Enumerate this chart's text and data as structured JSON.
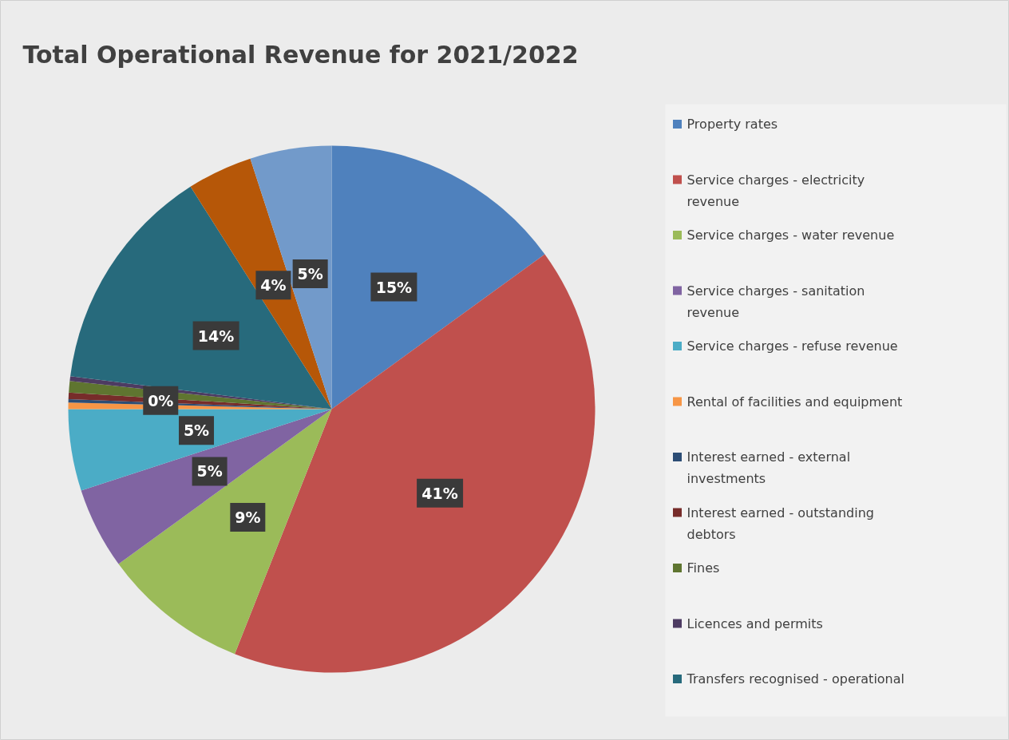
{
  "chart_data": {
    "type": "pie",
    "title": "Total Operational Revenue for 2021/2022",
    "categories": [
      "Property rates",
      "Service charges - electricity revenue",
      "Service charges - water revenue",
      "Service charges - sanitation revenue",
      "Service charges - refuse revenue",
      "Rental of facilities and equipment",
      "Interest earned - external investments",
      "Interest earned - outstanding debtors",
      "Fines",
      "Licences and permits",
      "Transfers recognised - operational",
      null,
      null
    ],
    "values": [
      15,
      41,
      9,
      5,
      5,
      0.4,
      0.2,
      0.4,
      0.7,
      0.3,
      14,
      4,
      5
    ],
    "colors": [
      "#4f81bd",
      "#c0504d",
      "#9bbb59",
      "#8064a2",
      "#4bacc6",
      "#f79646",
      "#2c4d75",
      "#772c2a",
      "#5f7530",
      "#4d3b62",
      "#276a7c",
      "#b65708",
      "#729aca"
    ],
    "value_labels": [
      "15%",
      "41%",
      "9%",
      "5%",
      "5%",
      null,
      null,
      "0%",
      null,
      null,
      "14%",
      "4%",
      "5%"
    ],
    "legend": "right"
  }
}
